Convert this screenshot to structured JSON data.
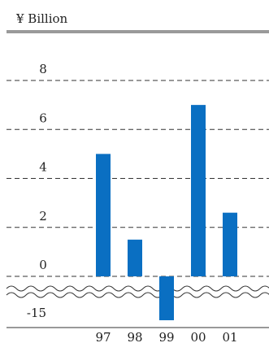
{
  "chart_data": {
    "type": "bar",
    "unit_label": "¥ Billion",
    "categories": [
      "97",
      "98",
      "99",
      "00",
      "01"
    ],
    "values": [
      5.0,
      1.5,
      -15.0,
      7.0,
      2.6
    ],
    "y_ticks_upper": [
      "8",
      "6",
      "4",
      "2",
      "0"
    ],
    "y_tick_lower": "-15",
    "ylim_upper": [
      0,
      8
    ],
    "axis_break": true,
    "grid": "dashed horizontal",
    "bar_color": "#0a6fc2"
  }
}
